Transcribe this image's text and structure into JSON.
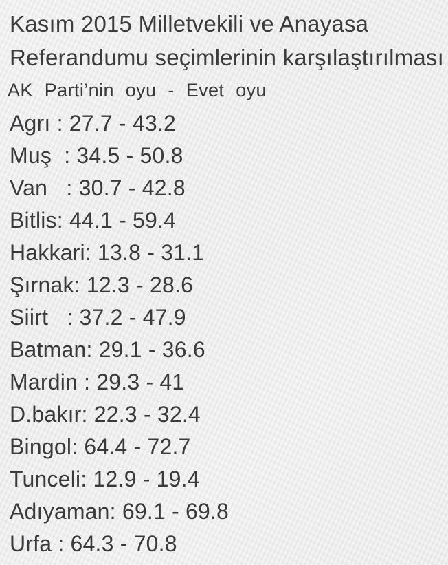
{
  "header": {
    "title_lines": [
      "Kasım 2015 Milletvekili ve Anayasa",
      "Referandumu seçimlerinin karşılaştırılması"
    ],
    "subtitle": "AK Parti’nin oyu - Evet oyu"
  },
  "format": {
    "colon": ":",
    "separator": "-"
  },
  "rows": [
    {
      "province": "Agrı",
      "label": "Agrı ",
      "ak": "27.7",
      "evet": "43.2"
    },
    {
      "province": "Muş",
      "label": "Muş  ",
      "ak": "34.5",
      "evet": "50.8"
    },
    {
      "province": "Van",
      "label": "Van   ",
      "ak": "30.7",
      "evet": "42.8"
    },
    {
      "province": "Bitlis",
      "label": "Bitlis",
      "ak": "44.1",
      "evet": "59.4"
    },
    {
      "province": "Hakkari",
      "label": "Hakkari",
      "ak": "13.8",
      "evet": "31.1"
    },
    {
      "province": "Şırnak",
      "label": "Şırnak",
      "ak": "12.3",
      "evet": "28.6"
    },
    {
      "province": "Siirt",
      "label": "Siirt   ",
      "ak": "37.2",
      "evet": "47.9"
    },
    {
      "province": "Batman",
      "label": "Batman",
      "ak": "29.1",
      "evet": "36.6"
    },
    {
      "province": "Mardin",
      "label": "Mardin ",
      "ak": "29.3",
      "evet": "41"
    },
    {
      "province": "D.bakır",
      "label": "D.bakır",
      "ak": "22.3",
      "evet": "32.4"
    },
    {
      "province": "Bingol",
      "label": "Bingol",
      "ak": "64.4",
      "evet": "72.7"
    },
    {
      "province": "Tunceli",
      "label": "Tunceli",
      "ak": "12.9",
      "evet": "19.4"
    },
    {
      "province": "Adıyaman",
      "label": "Adıyaman",
      "ak": "69.1",
      "evet": "69.8"
    },
    {
      "province": "Urfa",
      "label": "Urfa ",
      "ak": "64.3",
      "evet": "70.8"
    }
  ]
}
